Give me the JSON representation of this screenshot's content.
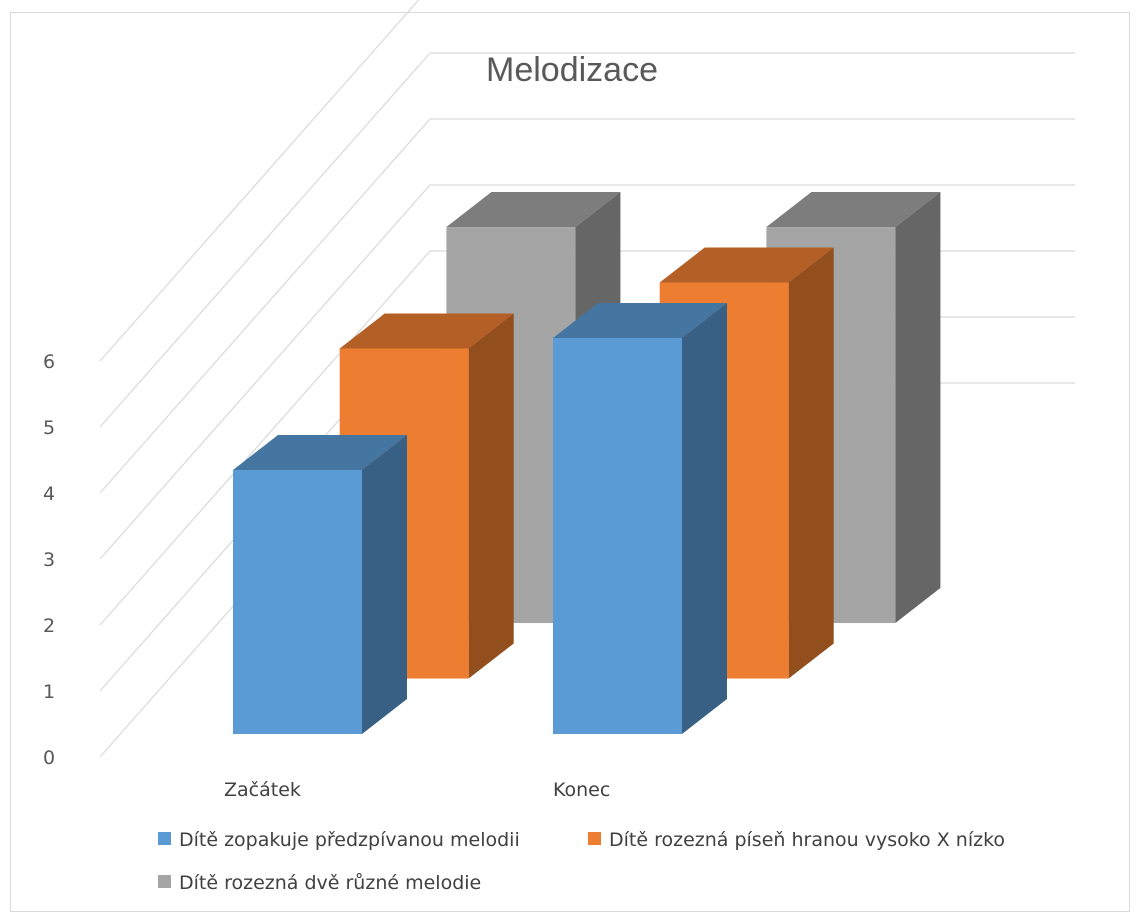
{
  "chart_data": {
    "type": "bar",
    "title": "Melodizace",
    "categories": [
      "Začátek",
      "Konec"
    ],
    "series": [
      {
        "name": "Dítě zopakuje předzpívanou melodii",
        "values": [
          4,
          6
        ],
        "color": "#5b9bd5"
      },
      {
        "name": "Dítě rozezná píseň hranou vysoko X nízko",
        "values": [
          5,
          6
        ],
        "color": "#ed7d31"
      },
      {
        "name": "Dítě rozezná dvě různé melodie",
        "values": [
          6,
          6
        ],
        "color": "#a5a5a5"
      }
    ],
    "yticks": [
      "0",
      "1",
      "2",
      "3",
      "4",
      "5",
      "6"
    ],
    "ylim": [
      0,
      6
    ],
    "grid": true,
    "legend": "bottom",
    "three_d": true
  }
}
